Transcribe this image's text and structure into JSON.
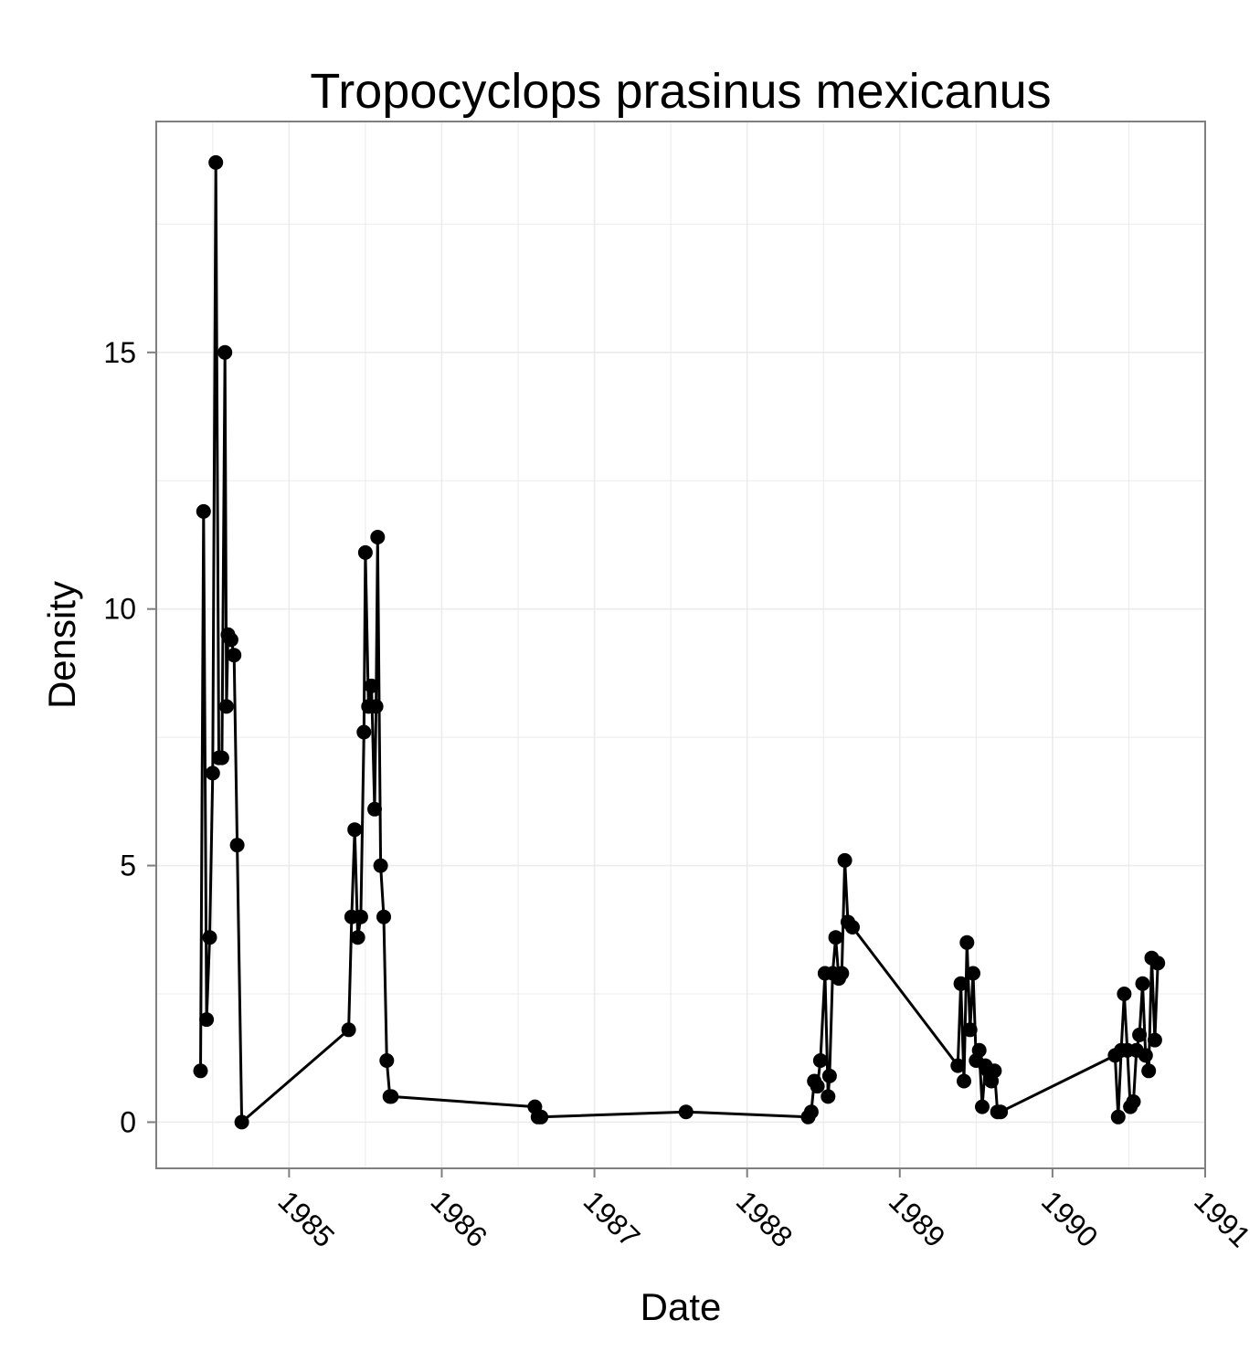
{
  "chart_data": {
    "type": "line",
    "title": "Tropocyclops prasinus mexicanus",
    "xlabel": "Date",
    "ylabel": "Density",
    "xlim": [
      1984.13,
      1991.0
    ],
    "ylim": [
      -0.9,
      19.5
    ],
    "x_ticks": [
      "1985",
      "1986",
      "1987",
      "1988",
      "1989",
      "1990",
      "1991"
    ],
    "y_ticks": [
      "0",
      "5",
      "10",
      "15"
    ],
    "grid": true,
    "background": "#ffffff",
    "gridColor": "#ebebeb",
    "lineColor": "#000000",
    "series": [
      {
        "x": [
          1984.42,
          1984.44,
          1984.46,
          1984.48,
          1984.5,
          1984.52,
          1984.54,
          1984.56,
          1984.58,
          1984.59,
          1984.6,
          1984.62,
          1984.64,
          1984.66,
          1984.69,
          1985.39,
          1985.41,
          1985.43,
          1985.45,
          1985.47,
          1985.49,
          1985.5,
          1985.52,
          1985.54,
          1985.56,
          1985.57,
          1985.58,
          1985.6,
          1985.62,
          1985.64,
          1985.66,
          1985.67,
          1986.61,
          1986.63,
          1986.65,
          1987.6,
          1988.4,
          1988.42,
          1988.44,
          1988.46,
          1988.48,
          1988.51,
          1988.53,
          1988.54,
          1988.56,
          1988.58,
          1988.6,
          1988.62,
          1988.64,
          1988.66,
          1988.69,
          1989.38,
          1989.4,
          1989.42,
          1989.44,
          1989.46,
          1989.48,
          1989.5,
          1989.52,
          1989.54,
          1989.56,
          1989.58,
          1989.6,
          1989.62,
          1989.64,
          1989.66,
          1990.41,
          1990.43,
          1990.45,
          1990.47,
          1990.49,
          1990.51,
          1990.53,
          1990.55,
          1990.57,
          1990.59,
          1990.61,
          1990.63,
          1990.65,
          1990.67,
          1990.69
        ],
        "y": [
          1.0,
          11.9,
          2.0,
          3.6,
          6.8,
          18.7,
          7.1,
          7.1,
          15.0,
          8.1,
          9.5,
          9.4,
          9.1,
          5.4,
          0.0,
          1.8,
          4.0,
          5.7,
          3.6,
          4.0,
          7.6,
          11.1,
          8.1,
          8.5,
          6.1,
          8.1,
          11.4,
          5.0,
          4.0,
          1.2,
          0.5,
          0.5,
          0.3,
          0.1,
          0.1,
          0.2,
          0.1,
          0.2,
          0.8,
          0.7,
          1.2,
          2.9,
          0.5,
          0.9,
          2.9,
          3.6,
          2.8,
          2.9,
          5.1,
          3.9,
          3.8,
          1.1,
          2.7,
          0.8,
          3.5,
          1.8,
          2.9,
          1.2,
          1.4,
          0.3,
          1.1,
          1.0,
          0.8,
          1.0,
          0.2,
          0.2,
          1.3,
          0.1,
          1.4,
          2.5,
          1.4,
          0.3,
          0.4,
          1.4,
          1.7,
          2.7,
          1.3,
          1.0,
          3.2,
          1.6,
          3.1
        ]
      }
    ]
  }
}
